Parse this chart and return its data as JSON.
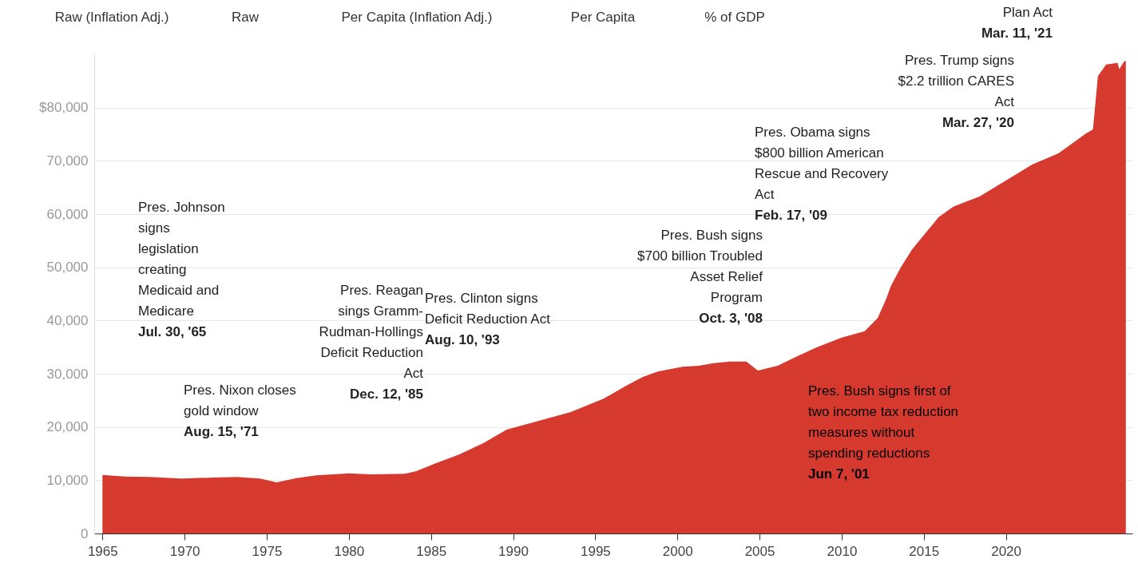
{
  "chart_data": {
    "type": "area",
    "x": [
      1965.0,
      1966.4,
      1967.9,
      1969.8,
      1971.7,
      1973.2,
      1974.6,
      1975.6,
      1976.8,
      1978.0,
      1980.0,
      1981.4,
      1983.4,
      1984.1,
      1985.3,
      1986.7,
      1988.2,
      1989.6,
      1991.6,
      1993.5,
      1995.5,
      1996.9,
      1997.9,
      1998.8,
      2000.3,
      2001.3,
      2002.2,
      2003.2,
      2004.2,
      2004.9,
      2006.1,
      2007.1,
      2008.5,
      2010.0,
      2011.4,
      2012.2,
      2012.7,
      2013.0,
      2013.6,
      2014.3,
      2015.9,
      2016.8,
      2018.4,
      2020.0,
      2021.6,
      2023.2,
      2024.9,
      2025.3,
      2025.6,
      2026.1,
      2026.8,
      2026.9,
      2027.2,
      2027.3
    ],
    "series": [
      {
        "color": "#d63a2f",
        "values": [
          11000,
          10700,
          10600,
          10300,
          10500,
          10600,
          10300,
          9600,
          10400,
          10900,
          11300,
          11100,
          11200,
          11700,
          13200,
          14800,
          17000,
          19500,
          21200,
          22800,
          25300,
          27800,
          29400,
          30400,
          31300,
          31500,
          32000,
          32300,
          32300,
          30600,
          31500,
          33000,
          35000,
          36800,
          38000,
          40500,
          44000,
          46500,
          50000,
          53400,
          59400,
          61400,
          63300,
          66300,
          69300,
          71400,
          75200,
          75900,
          85900,
          88100,
          88400,
          87200,
          88700,
          88700
        ]
      }
    ],
    "xlim": [
      1964.5,
      2027.7
    ],
    "xticks": [
      1965,
      1970,
      1975,
      1980,
      1985,
      1990,
      1995,
      2000,
      2005,
      2010,
      2015,
      2020
    ],
    "ylim": [
      0,
      90000
    ],
    "yticks": [
      0,
      {
        "value": 10000,
        "label": "10,000"
      },
      {
        "value": 20000,
        "label": "20,000"
      },
      {
        "value": 30000,
        "label": "30,000"
      },
      {
        "value": 40000,
        "label": "40,000"
      },
      {
        "value": 50000,
        "label": "50,000"
      },
      {
        "value": 60000,
        "label": "60,000"
      },
      {
        "value": 70000,
        "label": "70,000"
      },
      {
        "value": 80000,
        "label": "$80,000"
      }
    ],
    "grid": "y",
    "annotations": [
      "Pres. Johnson\nsigns\nlegislation\ncreating\nMedicaid and\nMedicare\nJul. 30, '65",
      "Pres. Nixon closes\ngold window\nAug. 15, '71",
      "Pres. Reagan\nsings Gramm-\nRudman-Hollings\nDeficit Reduction\nAct\nDec. 12, '85",
      "Pres. Clinton signs\nDeficit Reduction Act\nAug. 10, '93",
      "Pres. Bush signs\n$700 billion Troubled\nAsset Relief\nProgram\nOct. 3, '08",
      "Pres. Obama signs\n$800 billion American\nRescue and Recovery\nAct\nFeb. 17, '09",
      "Pres. Trump signs\n$2.2 trillion CARES\nAct\nMar. 27, '20",
      "Pres. Bush signs first of\ntwo income tax reduction\nmeasures without\nspending reductions\nJun 7, '01",
      "Plan Act\nMar. 11, '21",
      "Raw (Inflation Adj.)",
      "Raw",
      "Per Capita (Inflation Adj.)",
      "Per Capita",
      "% of GDP"
    ]
  }
}
